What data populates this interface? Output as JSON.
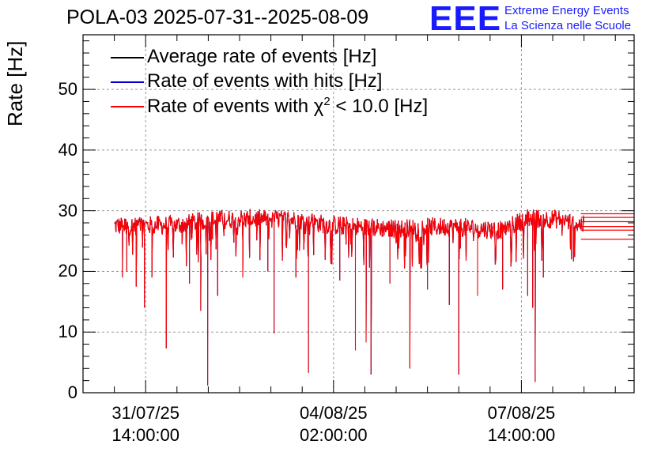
{
  "header": {
    "title": "POLA-03 2025-07-31--2025-08-09",
    "logo": "EEE",
    "logo_line1": "Extreme Energy Events",
    "logo_line2": "La Scienza nelle Scuole"
  },
  "chart_data": {
    "type": "line",
    "title": "POLA-03 2025-07-31--2025-08-09",
    "ylabel": "Rate [Hz]",
    "xlabel": "",
    "ylim": [
      0,
      59
    ],
    "xlim_days": [
      -1.0,
      7.8
    ],
    "yticks": [
      0,
      10,
      20,
      30,
      40,
      50
    ],
    "xticks": [
      {
        "pos": 0,
        "line1": "31/07/25",
        "line2": "14:00:00"
      },
      {
        "pos": 3,
        "line1": "04/08/25",
        "line2": "02:00:00"
      },
      {
        "pos": 6,
        "line1": "07/08/25",
        "line2": "14:00:00"
      }
    ],
    "grid": true,
    "legend_position": "top-left",
    "series": [
      {
        "name": "Average rate of events [Hz]",
        "color": "#000000",
        "baseline": 27.8
      },
      {
        "name": "Rate of events with hits [Hz]",
        "color": "#0000cc",
        "baseline": 27.8
      },
      {
        "name": "Rate of events with χ² < 10.0 [Hz]",
        "color": "#ff0000",
        "baseline": 27.5
      }
    ],
    "legend_labels": {
      "avg": "Average rate of events [Hz]",
      "hits": "Rate of events with hits [Hz]",
      "chi_prefix": "Rate of events with χ",
      "chi_sup": "2",
      "chi_suffix": " < 10.0 [Hz]"
    },
    "baseline_profile": [
      {
        "t": -0.5,
        "y": 27.5
      },
      {
        "t": 0.5,
        "y": 27.6
      },
      {
        "t": 1.0,
        "y": 28.4
      },
      {
        "t": 1.5,
        "y": 28.7
      },
      {
        "t": 2.3,
        "y": 28.6
      },
      {
        "t": 3.0,
        "y": 27.6
      },
      {
        "t": 4.0,
        "y": 27.0
      },
      {
        "t": 4.8,
        "y": 27.4
      },
      {
        "t": 5.7,
        "y": 26.8
      },
      {
        "t": 6.1,
        "y": 28.8
      },
      {
        "t": 6.6,
        "y": 28.6
      },
      {
        "t": 7.0,
        "y": 27.6
      }
    ],
    "dips": [
      {
        "t": -0.37,
        "y": 19
      },
      {
        "t": -0.3,
        "y": 20
      },
      {
        "t": -0.15,
        "y": 17.5
      },
      {
        "t": -0.02,
        "y": 14
      },
      {
        "t": 0.1,
        "y": 19
      },
      {
        "t": 0.33,
        "y": 7.3
      },
      {
        "t": 0.7,
        "y": 18
      },
      {
        "t": 0.88,
        "y": 13.5
      },
      {
        "t": 0.99,
        "y": 1.2
      },
      {
        "t": 1.15,
        "y": 16
      },
      {
        "t": 1.55,
        "y": 19
      },
      {
        "t": 1.95,
        "y": 20
      },
      {
        "t": 2.05,
        "y": 9.8
      },
      {
        "t": 2.4,
        "y": 19
      },
      {
        "t": 2.6,
        "y": 3.3
      },
      {
        "t": 3.1,
        "y": 18.5
      },
      {
        "t": 3.35,
        "y": 7
      },
      {
        "t": 3.52,
        "y": 8.3
      },
      {
        "t": 3.6,
        "y": 3
      },
      {
        "t": 3.9,
        "y": 18
      },
      {
        "t": 4.22,
        "y": 4
      },
      {
        "t": 4.5,
        "y": 17
      },
      {
        "t": 4.85,
        "y": 14.5
      },
      {
        "t": 5.0,
        "y": 3
      },
      {
        "t": 5.3,
        "y": 16
      },
      {
        "t": 5.7,
        "y": 17
      },
      {
        "t": 6.1,
        "y": 16
      },
      {
        "t": 6.18,
        "y": 14
      },
      {
        "t": 6.22,
        "y": 1.8
      },
      {
        "t": 6.35,
        "y": 19
      },
      {
        "t": 6.8,
        "y": 22
      }
    ],
    "data_end": 7.0,
    "tail_levels": [
      25.3,
      26.8,
      27.4,
      28.2,
      28.9,
      29.5
    ]
  }
}
